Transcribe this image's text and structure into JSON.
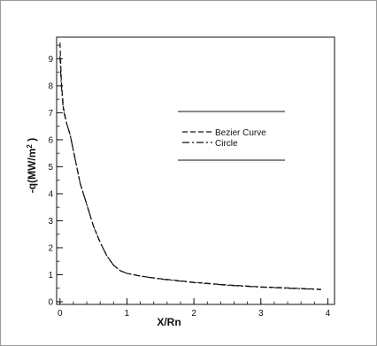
{
  "chart_data": {
    "type": "line",
    "title": "",
    "xlabel": "X/Rn",
    "ylabel": "-q(MW/m",
    "ylabel_sup": "2",
    "ylabel_tail": " )",
    "xlim": [
      -0.05,
      4.1
    ],
    "ylim": [
      -0.1,
      9.8
    ],
    "x_ticks": [
      0,
      1,
      2,
      3,
      4
    ],
    "y_ticks": [
      0,
      1,
      2,
      3,
      4,
      5,
      6,
      7,
      8,
      9
    ],
    "grid": false,
    "legend_position": "right-middle",
    "series": [
      {
        "name": "Bezier Curve",
        "dash": "dashed",
        "color": "#111111",
        "x": [
          0.0,
          0.02,
          0.05,
          0.1,
          0.15,
          0.2,
          0.3,
          0.4,
          0.5,
          0.6,
          0.7,
          0.8,
          0.9,
          1.0,
          1.2,
          1.5,
          2.0,
          2.5,
          3.0,
          3.5,
          3.9
        ],
        "y": [
          9.6,
          8.2,
          7.2,
          6.6,
          6.2,
          5.6,
          4.4,
          3.6,
          2.8,
          2.2,
          1.7,
          1.35,
          1.15,
          1.05,
          0.95,
          0.85,
          0.72,
          0.62,
          0.55,
          0.5,
          0.46
        ]
      },
      {
        "name": "Circle",
        "dash": "dashdot",
        "color": "#111111",
        "x": [
          0.0,
          0.02,
          0.05,
          0.1,
          0.15,
          0.2,
          0.3,
          0.4,
          0.5,
          0.6,
          0.7,
          0.8,
          0.9,
          1.0,
          1.2,
          1.5,
          2.0,
          2.5,
          3.0,
          3.5,
          3.9
        ],
        "y": [
          9.1,
          8.0,
          7.1,
          6.6,
          6.2,
          5.6,
          4.4,
          3.6,
          2.8,
          2.2,
          1.7,
          1.35,
          1.15,
          1.05,
          0.95,
          0.84,
          0.71,
          0.61,
          0.54,
          0.49,
          0.45
        ]
      }
    ]
  }
}
